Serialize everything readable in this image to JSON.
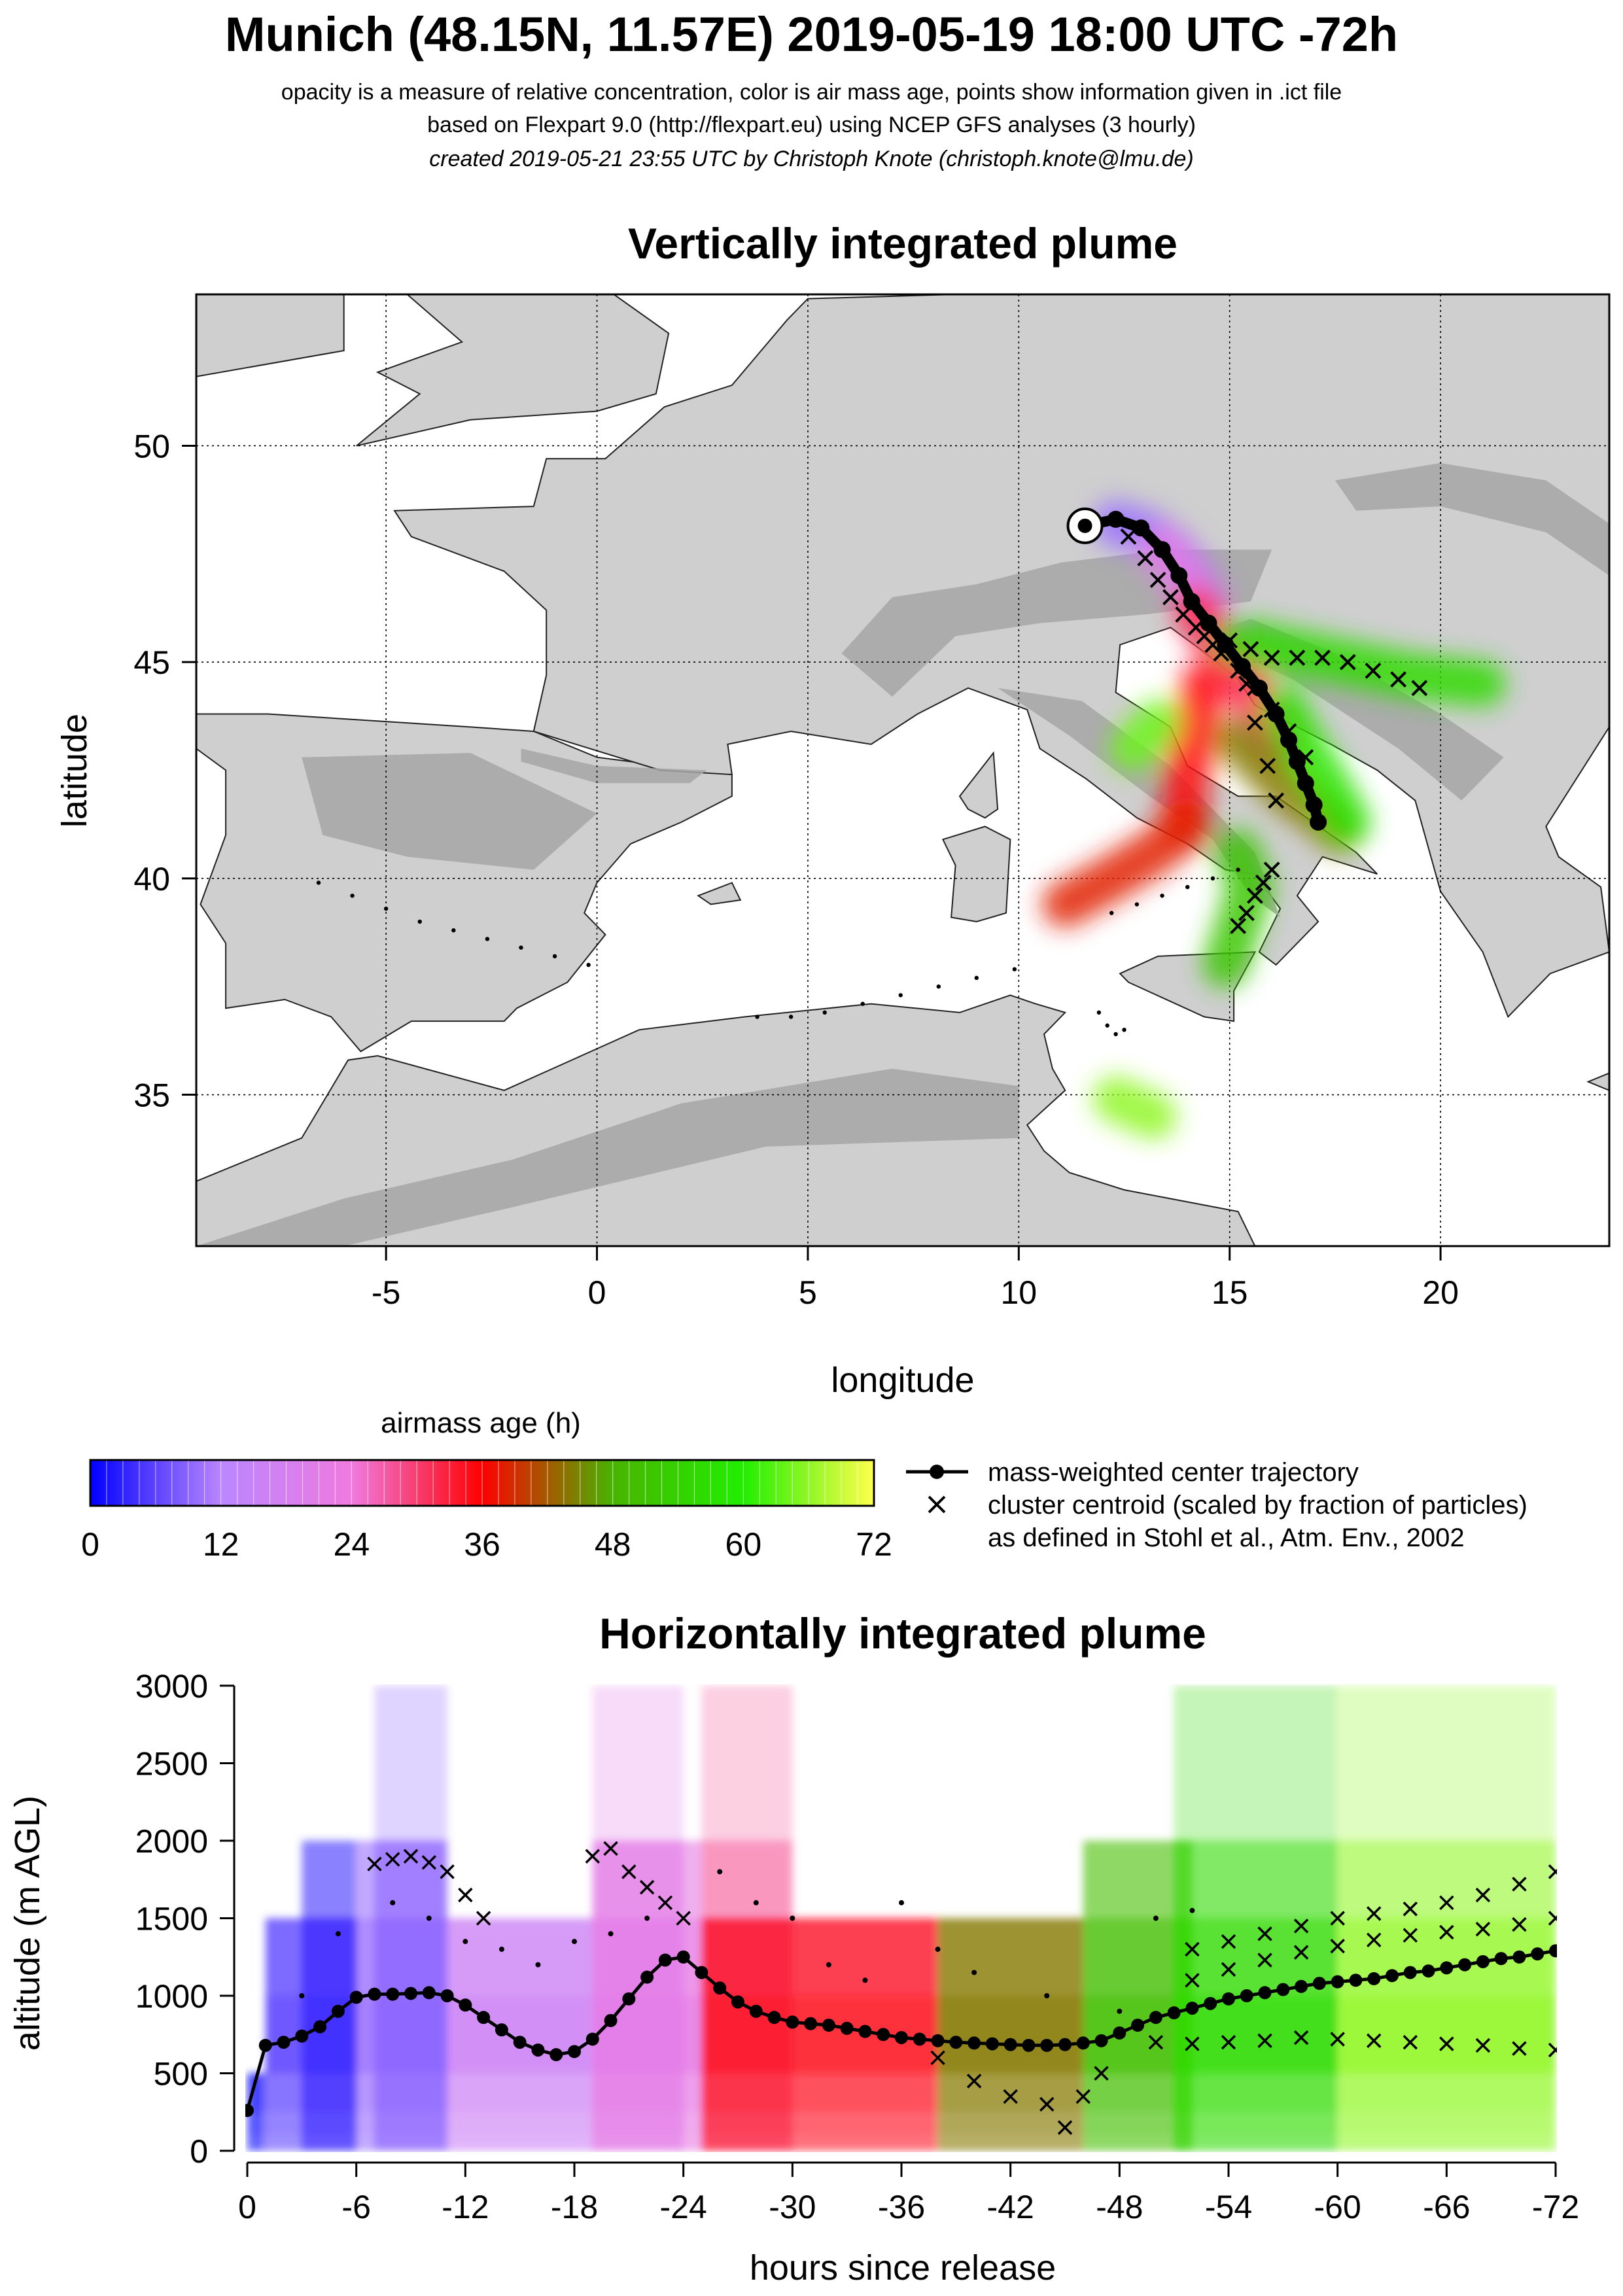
{
  "header": {
    "title": "Munich (48.15N, 11.57E) 2019-05-19 18:00 UTC -72h",
    "subtitle_1": "opacity is a measure of relative concentration, color is air mass age, points show information given in .ict file",
    "subtitle_2": "based on Flexpart 9.0 (http://flexpart.eu) using NCEP GFS analyses (3 hourly)",
    "subtitle_3": "created 2019-05-21 23:55 UTC by Christoph Knote (christoph.knote@lmu.de)"
  },
  "colors": {
    "land": "#cfcfcf",
    "land_dark": "#a6a6a6",
    "sea": "#ffffff",
    "traj": "#000000"
  },
  "chart_data": [
    {
      "type": "scatter",
      "title": "Vertically integrated plume",
      "xlabel": "longitude",
      "ylabel": "latitude",
      "xlim": [
        -9.5,
        24
      ],
      "ylim": [
        31.5,
        53.5
      ],
      "xticks": [
        -5,
        0,
        5,
        10,
        15,
        20
      ],
      "yticks": [
        35,
        40,
        45,
        50
      ],
      "grid": true,
      "release": {
        "lon": 11.57,
        "lat": 48.15
      },
      "center_trajectory": {
        "lon": [
          11.57,
          12.3,
          12.9,
          13.4,
          13.8,
          14.1,
          14.5,
          14.9,
          15.3,
          15.7,
          16.1,
          16.4,
          16.6,
          16.8,
          17.0,
          17.1
        ],
        "lat": [
          48.15,
          48.3,
          48.1,
          47.6,
          47.0,
          46.4,
          45.9,
          45.4,
          44.9,
          44.4,
          43.8,
          43.2,
          42.7,
          42.2,
          41.7,
          41.3
        ]
      },
      "clusters": [
        {
          "lon": [
            12.6,
            13.0,
            13.3,
            13.6,
            13.9,
            14.2,
            14.4,
            14.6
          ],
          "lat": [
            47.9,
            47.4,
            46.9,
            46.5,
            46.1,
            45.8,
            45.6,
            45.4
          ]
        },
        {
          "lon": [
            15.0,
            15.5,
            16.0,
            16.6,
            17.2,
            17.8,
            18.4,
            19.0,
            19.5
          ],
          "lat": [
            45.5,
            45.3,
            45.1,
            45.1,
            45.1,
            45.0,
            44.8,
            44.6,
            44.4
          ]
        },
        {
          "lon": [
            14.8,
            15.2,
            15.6,
            16.0,
            16.4,
            16.8
          ],
          "lat": [
            45.2,
            44.8,
            44.4,
            43.9,
            43.4,
            42.8
          ]
        },
        {
          "lon": [
            16.0,
            15.8,
            15.6,
            15.4,
            15.2
          ],
          "lat": [
            40.2,
            39.9,
            39.6,
            39.2,
            38.9
          ]
        },
        {
          "lon": [
            15.4,
            15.6,
            15.9,
            16.1
          ],
          "lat": [
            44.5,
            43.6,
            42.6,
            41.8
          ]
        }
      ],
      "points": [
        {
          "lon": [
            -6.6,
            -5.8,
            -5.0,
            -4.2,
            -3.4,
            -2.6,
            -1.8,
            -1.0,
            -0.2
          ],
          "lat": [
            39.9,
            39.6,
            39.3,
            39.0,
            38.8,
            38.6,
            38.4,
            38.2,
            38.0
          ]
        },
        {
          "lon": [
            3.8,
            4.6,
            5.4,
            6.3,
            7.2,
            8.1,
            9.0,
            9.9
          ],
          "lat": [
            36.8,
            36.8,
            36.9,
            37.1,
            37.3,
            37.5,
            37.7,
            37.9
          ]
        },
        {
          "lon": [
            11.9,
            12.1,
            12.3,
            12.5
          ],
          "lat": [
            36.9,
            36.6,
            36.4,
            36.5
          ]
        },
        {
          "lon": [
            12.2,
            12.8,
            13.4,
            14.0,
            14.6,
            15.2
          ],
          "lat": [
            39.2,
            39.4,
            39.6,
            39.8,
            40.0,
            40.2
          ]
        }
      ],
      "plume": [
        {
          "lon": [
            12.3,
            13.0,
            13.6,
            14.1,
            14.4
          ],
          "lat": [
            48.2,
            48.0,
            47.6,
            47.0,
            46.4
          ],
          "age": 10
        },
        {
          "lon": [
            13.4,
            14.0,
            14.4,
            14.8,
            15.1
          ],
          "lat": [
            47.6,
            46.9,
            46.2,
            45.6,
            45.0
          ],
          "age": 22
        },
        {
          "lon": [
            14.2,
            14.6,
            15.0,
            15.4,
            15.8,
            16.2
          ],
          "lat": [
            46.2,
            45.6,
            45.0,
            44.4,
            43.8,
            43.2
          ],
          "age": 32
        },
        {
          "lon": [
            14.4,
            14.2,
            14.0,
            13.9
          ],
          "lat": [
            44.5,
            43.5,
            42.4,
            41.3
          ],
          "age": 35
        },
        {
          "lon": [
            14.0,
            13.2,
            12.2,
            11.1
          ],
          "lat": [
            41.2,
            40.6,
            40.0,
            39.4
          ],
          "age": 38
        },
        {
          "lon": [
            15.2,
            15.8,
            16.4,
            17.0,
            17.6
          ],
          "lat": [
            43.2,
            42.6,
            42.0,
            41.6,
            41.1
          ],
          "age": 44
        },
        {
          "lon": [
            15.2,
            16.2,
            17.2,
            18.2,
            19.2,
            20.0,
            21.0
          ],
          "lat": [
            45.5,
            45.3,
            45.1,
            44.9,
            44.7,
            44.6,
            44.5
          ],
          "age": 56
        },
        {
          "lon": [
            16.3,
            16.8,
            17.3,
            17.8
          ],
          "lat": [
            43.9,
            43.0,
            42.2,
            41.3
          ],
          "age": 58
        },
        {
          "lon": [
            15.2,
            15.5,
            15.2,
            14.9
          ],
          "lat": [
            40.6,
            39.8,
            38.9,
            38.0
          ],
          "age": 52
        },
        {
          "lon": [
            13.3,
            12.7
          ],
          "lat": [
            43.6,
            43.0
          ],
          "age": 64
        },
        {
          "lon": [
            12.3,
            13.2
          ],
          "lat": [
            34.9,
            34.5
          ],
          "age": 66
        }
      ]
    },
    {
      "type": "heatmap",
      "title": "Horizontally integrated plume",
      "xlabel": "hours since release",
      "ylabel": "altitude (m AGL)",
      "xlim": [
        0,
        -72
      ],
      "ylim": [
        0,
        3000
      ],
      "xticks": [
        0,
        -6,
        -12,
        -18,
        -24,
        -30,
        -36,
        -42,
        -48,
        -54,
        -60,
        -66,
        -72
      ],
      "xtick_labels": [
        "0",
        "-6",
        "-12",
        "-18",
        "-24",
        "-30",
        "-36",
        "-42",
        "-48",
        "-54",
        "-60",
        "-66",
        "-72"
      ],
      "yticks": [
        0,
        500,
        1000,
        1500,
        2000,
        2500,
        3000
      ],
      "center_trajectory": {
        "hours": [
          0,
          -1,
          -2,
          -3,
          -4,
          -5,
          -6,
          -7,
          -8,
          -9,
          -10,
          -11,
          -12,
          -13,
          -14,
          -15,
          -16,
          -17,
          -18,
          -19,
          -20,
          -21,
          -22,
          -23,
          -24,
          -25,
          -26,
          -27,
          -28,
          -29,
          -30,
          -31,
          -32,
          -33,
          -34,
          -35,
          -36,
          -37,
          -38,
          -39,
          -40,
          -41,
          -42,
          -43,
          -44,
          -45,
          -46,
          -47,
          -48,
          -49,
          -50,
          -51,
          -52,
          -53,
          -54,
          -55,
          -56,
          -57,
          -58,
          -59,
          -60,
          -61,
          -62,
          -63,
          -64,
          -65,
          -66,
          -67,
          -68,
          -69,
          -70,
          -71,
          -72
        ],
        "altitude": [
          260,
          680,
          700,
          740,
          800,
          900,
          990,
          1010,
          1010,
          1015,
          1020,
          1000,
          940,
          860,
          780,
          700,
          650,
          620,
          640,
          720,
          840,
          980,
          1120,
          1230,
          1250,
          1150,
          1050,
          960,
          900,
          860,
          830,
          820,
          810,
          790,
          770,
          750,
          730,
          720,
          710,
          700,
          695,
          690,
          685,
          680,
          680,
          685,
          695,
          710,
          760,
          810,
          860,
          890,
          920,
          950,
          980,
          1000,
          1020,
          1040,
          1060,
          1080,
          1090,
          1100,
          1110,
          1130,
          1150,
          1160,
          1180,
          1200,
          1220,
          1240,
          1250,
          1270,
          1290
        ]
      },
      "cluster_series": [
        {
          "hours": [
            -52,
            -54,
            -56,
            -58,
            -60,
            -62,
            -64,
            -66,
            -68,
            -70,
            -72
          ],
          "altitude": [
            1300,
            1350,
            1400,
            1450,
            1500,
            1530,
            1560,
            1600,
            1650,
            1720,
            1800
          ]
        },
        {
          "hours": [
            -52,
            -54,
            -56,
            -58,
            -60,
            -62,
            -64,
            -66,
            -68,
            -70,
            -72
          ],
          "altitude": [
            1100,
            1170,
            1230,
            1280,
            1320,
            1360,
            1390,
            1410,
            1430,
            1460,
            1500
          ]
        },
        {
          "hours": [
            -50,
            -52,
            -54,
            -56,
            -58,
            -60,
            -62,
            -64,
            -66,
            -68,
            -70,
            -72
          ],
          "altitude": [
            700,
            690,
            700,
            710,
            730,
            720,
            710,
            700,
            690,
            680,
            660,
            650
          ]
        },
        {
          "hours": [
            -7,
            -8,
            -9,
            -10,
            -11,
            -12,
            -13
          ],
          "altitude": [
            1850,
            1880,
            1900,
            1860,
            1800,
            1650,
            1500
          ]
        },
        {
          "hours": [
            -19,
            -20,
            -21,
            -22,
            -23,
            -24
          ],
          "altitude": [
            1900,
            1950,
            1800,
            1700,
            1600,
            1500
          ]
        },
        {
          "hours": [
            -38,
            -40,
            -42,
            -44,
            -45,
            -46,
            -47
          ],
          "altitude": [
            600,
            450,
            350,
            300,
            150,
            350,
            500
          ]
        }
      ],
      "points": {
        "hours": [
          -3,
          -5,
          -8,
          -10,
          -12,
          -14,
          -16,
          -18,
          -20,
          -22,
          -26,
          -28,
          -30,
          -32,
          -34,
          -36,
          -38,
          -40,
          -44,
          -48,
          -50,
          -52
        ],
        "altitude": [
          1000,
          1400,
          1600,
          1500,
          1350,
          1300,
          1200,
          1350,
          1400,
          1500,
          1800,
          1600,
          1500,
          1200,
          1100,
          1600,
          1300,
          1150,
          1000,
          900,
          1500,
          1550
        ]
      },
      "concentration_field": {
        "altitude_levels": [
          0,
          100,
          250,
          500,
          1000,
          1500,
          2000,
          3000
        ],
        "columns": [
          {
            "hours": [
              0,
              -1
            ],
            "age": 0,
            "top": 500
          },
          {
            "hours": [
              -1,
              -6
            ],
            "age": 6,
            "top": 1500
          },
          {
            "hours": [
              -3,
              -6
            ],
            "age": 4,
            "top": 2000
          },
          {
            "hours": [
              -6,
              -11
            ],
            "age": 10,
            "top": 2000
          },
          {
            "hours": [
              -7,
              -11
            ],
            "age": 9,
            "top": 3000
          },
          {
            "hours": [
              -11,
              -19
            ],
            "age": 16,
            "top": 1500
          },
          {
            "hours": [
              -19,
              -25
            ],
            "age": 22,
            "top": 2000
          },
          {
            "hours": [
              -19,
              -24
            ],
            "age": 21,
            "top": 3000
          },
          {
            "hours": [
              -25,
              -30
            ],
            "age": 28,
            "top": 3000
          },
          {
            "hours": [
              -25,
              -38
            ],
            "age": 34,
            "top": 1500
          },
          {
            "hours": [
              -38,
              -46
            ],
            "age": 44,
            "top": 1500
          },
          {
            "hours": [
              -46,
              -52
            ],
            "age": 50,
            "top": 2000
          },
          {
            "hours": [
              -51,
              -60
            ],
            "age": 56,
            "top": 3000
          },
          {
            "hours": [
              -60,
              -72
            ],
            "age": 66,
            "top": 3000
          }
        ]
      }
    }
  ],
  "colorbar": {
    "title": "airmass age (h)",
    "min": 0,
    "max": 72,
    "ticks": [
      "0",
      "12",
      "24",
      "36",
      "48",
      "60",
      "72"
    ],
    "colors": [
      "#0000ff",
      "#ba86ff",
      "#f07ae0",
      "#ff0000",
      "#48b400",
      "#22ee00",
      "#ffff4c"
    ]
  },
  "legend": {
    "center_label": "mass-weighted center trajectory",
    "cluster_label": "cluster centroid (scaled by fraction of particles)",
    "cluster_label_2": "as defined in Stohl et al., Atm. Env., 2002"
  }
}
